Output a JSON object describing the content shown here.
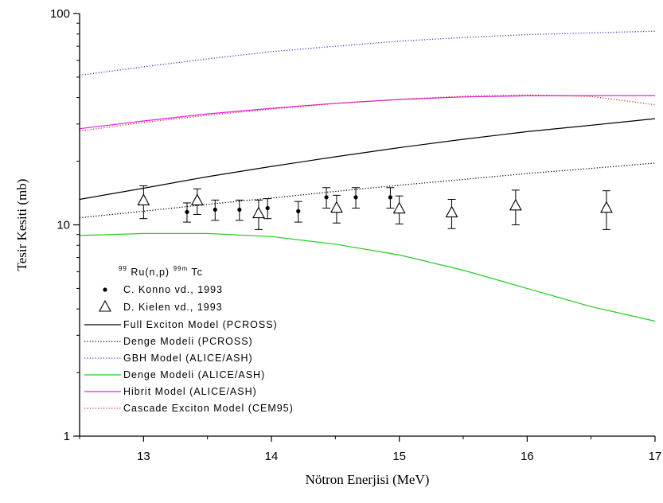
{
  "chart_data": {
    "type": "line",
    "xlabel": "Nötron Enerjisi (MeV)",
    "ylabel": "Tesir Kesiti (mb)",
    "xlim": [
      12.5,
      17
    ],
    "ylim": [
      1,
      100
    ],
    "yscale": "log",
    "x_ticks": [
      13,
      14,
      15,
      16,
      17
    ],
    "x_tick_labels": [
      "13",
      "14",
      "15",
      "16",
      "17"
    ],
    "y_ticks": [
      1,
      10,
      100
    ],
    "y_tick_labels": [
      "1",
      "10",
      "100"
    ],
    "legend": {
      "placement": "lower-left",
      "reaction": {
        "pre": "99",
        "base": "Ru(n,p)",
        "sup": "99m",
        "post": "Tc"
      }
    },
    "scatter_series": [
      {
        "name": "C. Konno vd., 1993",
        "marker": "dot",
        "color": "#000000",
        "points": [
          {
            "x": 13.34,
            "y": 11.5,
            "err": 1.2
          },
          {
            "x": 13.56,
            "y": 11.8,
            "err": 1.3
          },
          {
            "x": 13.75,
            "y": 11.8,
            "err": 1.3
          },
          {
            "x": 13.97,
            "y": 12.0,
            "err": 1.3
          },
          {
            "x": 14.21,
            "y": 11.6,
            "err": 1.3
          },
          {
            "x": 14.43,
            "y": 13.5,
            "err": 1.5
          },
          {
            "x": 14.66,
            "y": 13.5,
            "err": 1.5
          },
          {
            "x": 14.93,
            "y": 13.5,
            "err": 1.5
          }
        ]
      },
      {
        "name": "D. Kielen vd., 1993",
        "marker": "triangle",
        "color": "#000000",
        "points": [
          {
            "x": 13.0,
            "y": 13.0,
            "err": 2.3
          },
          {
            "x": 13.42,
            "y": 13.0,
            "err": 1.8
          },
          {
            "x": 13.9,
            "y": 11.3,
            "err": 1.8
          },
          {
            "x": 14.51,
            "y": 12.0,
            "err": 1.8
          },
          {
            "x": 15.0,
            "y": 11.9,
            "err": 1.8
          },
          {
            "x": 15.41,
            "y": 11.4,
            "err": 1.8
          },
          {
            "x": 15.91,
            "y": 12.3,
            "err": 2.3
          },
          {
            "x": 16.62,
            "y": 12.0,
            "err": 2.5
          }
        ]
      }
    ],
    "line_series": [
      {
        "name": "Full Exciton Model (PCROSS)",
        "color": "#000000",
        "dash": "solid",
        "x": [
          12.5,
          13,
          13.5,
          14,
          14.5,
          15,
          15.5,
          16,
          16.5,
          17
        ],
        "y": [
          13.2,
          14.9,
          16.9,
          18.9,
          21.0,
          23.2,
          25.4,
          27.6,
          29.6,
          31.8
        ]
      },
      {
        "name": "Denge Modeli (PCROSS)",
        "color": "#000000",
        "dash": "dotted",
        "x": [
          12.5,
          13,
          13.5,
          14,
          14.5,
          15,
          15.5,
          16,
          16.5,
          17
        ],
        "y": [
          10.8,
          11.6,
          12.5,
          13.4,
          14.4,
          15.4,
          16.4,
          17.5,
          18.5,
          19.6
        ]
      },
      {
        "name": "GBH Model (ALICE/ASH)",
        "color": "#3a3ac8",
        "dash": "dotted",
        "x": [
          12.5,
          13,
          13.5,
          14,
          14.5,
          15,
          15.5,
          16,
          16.5,
          17
        ],
        "y": [
          51,
          56,
          61,
          66,
          70,
          74,
          77,
          79.5,
          81,
          82.5
        ]
      },
      {
        "name": "Denge Modeli (ALICE/ASH)",
        "color": "#22cc22",
        "dash": "solid",
        "x": [
          12.5,
          13,
          13.5,
          14,
          14.5,
          15,
          15.5,
          16,
          16.5,
          17
        ],
        "y": [
          8.9,
          9.1,
          9.1,
          8.8,
          8.1,
          7.2,
          6.1,
          5.0,
          4.1,
          3.5
        ]
      },
      {
        "name": "Hibrit Model (ALICE/ASH)",
        "color": "#e020e0",
        "dash": "solid",
        "x": [
          12.5,
          13,
          13.5,
          14,
          14.5,
          15,
          15.5,
          16,
          16.5,
          17
        ],
        "y": [
          28.5,
          31.0,
          33.5,
          35.6,
          37.6,
          39.2,
          40.3,
          40.8,
          40.9,
          40.9
        ]
      },
      {
        "name": "Cascade Exciton Model (CEM95)",
        "color": "#d03030",
        "dash": "dotted",
        "x": [
          12.5,
          13,
          13.5,
          14,
          14.5,
          15,
          15.5,
          16,
          16.5,
          17
        ],
        "y": [
          27.8,
          30.5,
          33.0,
          35.3,
          37.5,
          39.3,
          40.6,
          41.2,
          40.5,
          37.0
        ]
      }
    ]
  }
}
